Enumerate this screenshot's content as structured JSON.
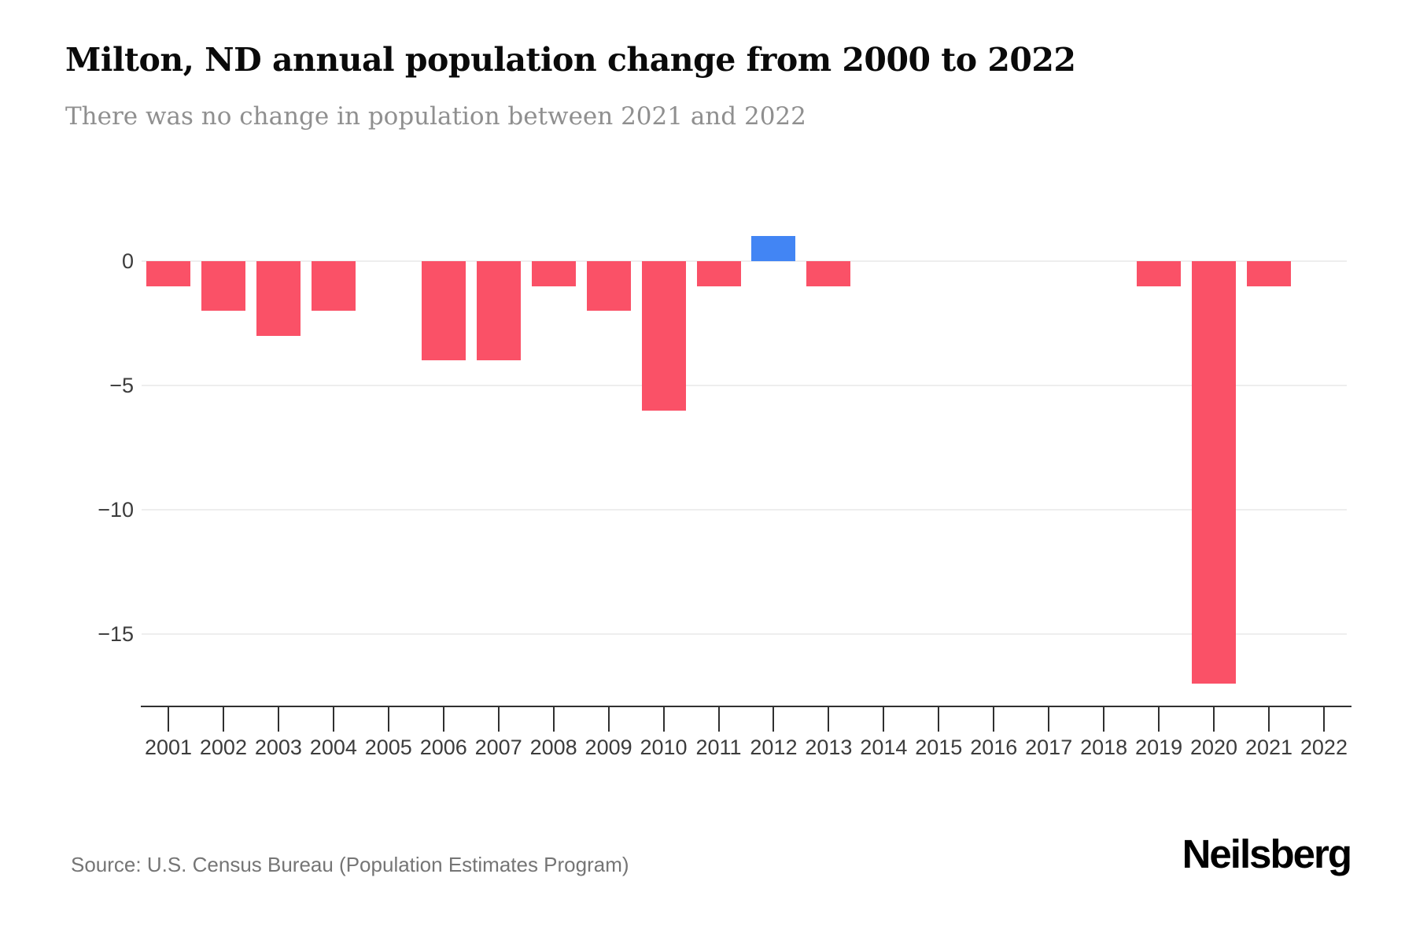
{
  "chart_data": {
    "type": "bar",
    "title": "Milton, ND annual population change from 2000 to 2022",
    "subtitle": "There was no change in population between 2021 and 2022",
    "categories": [
      "2001",
      "2002",
      "2003",
      "2004",
      "2005",
      "2006",
      "2007",
      "2008",
      "2009",
      "2010",
      "2011",
      "2012",
      "2013",
      "2014",
      "2015",
      "2016",
      "2017",
      "2018",
      "2019",
      "2020",
      "2021",
      "2022"
    ],
    "values": [
      -1,
      -2,
      -3,
      -2,
      0,
      -4,
      -4,
      -1,
      -2,
      -6,
      -1,
      1,
      -1,
      0,
      0,
      0,
      0,
      0,
      -1,
      -17,
      -1,
      0
    ],
    "xlabel": "",
    "ylabel": "",
    "ylim": [
      3,
      -18
    ],
    "yticks": [
      0,
      -5,
      -10,
      -15
    ],
    "ytick_labels": [
      "0",
      "−5",
      "−10",
      "−15"
    ],
    "grid": true,
    "legend": "none",
    "colors": {
      "bar_negative": "#FA5167",
      "bar_positive": "#4285F4",
      "gridline": "#EEEEEE",
      "axis": "#303030",
      "tick_label": "#3C3C3C",
      "title": "#0A0A0A",
      "subtitle": "#8F8F8F",
      "source": "#757575",
      "brand": "#000000"
    },
    "source": "Source: U.S. Census Bureau (Population Estimates Program)",
    "brand": "Neilsberg"
  }
}
